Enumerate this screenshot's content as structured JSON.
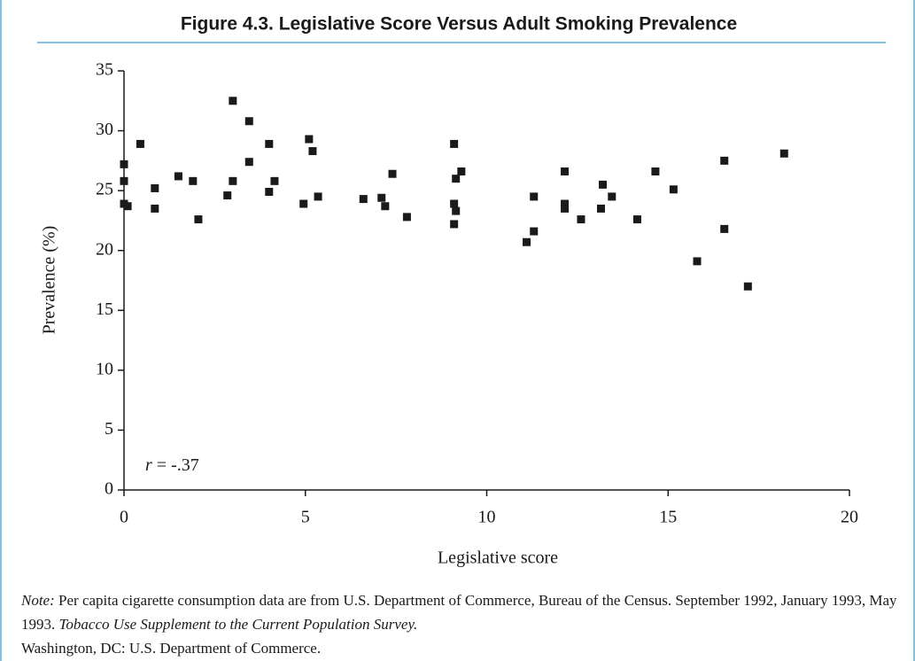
{
  "chart_data": {
    "type": "scatter",
    "title": "Figure 4.3. Legislative Score Versus Adult Smoking Prevalence",
    "xlabel": "Legislative score",
    "ylabel": "Prevalence (%)",
    "annotation": {
      "symbol": "r",
      "text": "= -.37"
    },
    "color": "#1a1a1a",
    "x": [
      0,
      0,
      0,
      0.1,
      0.45,
      0.85,
      0.85,
      1.5,
      1.9,
      2.05,
      2.85,
      3.0,
      3.0,
      3.45,
      3.45,
      4.0,
      4.0,
      4.15,
      4.95,
      5.1,
      5.2,
      5.35,
      6.6,
      7.1,
      7.2,
      7.4,
      7.8,
      9.1,
      9.1,
      9.1,
      9.15,
      9.15,
      9.3,
      11.1,
      11.3,
      11.3,
      12.15,
      12.15,
      12.15,
      12.6,
      13.15,
      13.2,
      13.45,
      14.15,
      14.65,
      15.15,
      15.8,
      16.55,
      16.55,
      17.2,
      18.2
    ],
    "values": [
      27.2,
      25.8,
      23.9,
      23.7,
      28.9,
      25.2,
      23.5,
      26.2,
      25.8,
      22.6,
      24.6,
      32.5,
      25.8,
      30.8,
      27.4,
      28.9,
      24.9,
      25.8,
      23.9,
      29.3,
      28.3,
      24.5,
      24.3,
      24.4,
      23.7,
      26.4,
      22.8,
      28.9,
      23.9,
      22.2,
      26.0,
      23.3,
      26.6,
      20.7,
      24.5,
      21.6,
      26.6,
      23.9,
      23.5,
      22.6,
      23.5,
      25.5,
      24.5,
      22.6,
      26.6,
      25.1,
      19.1,
      21.8,
      27.5,
      17.0,
      28.1
    ],
    "xlim": [
      0,
      20
    ],
    "xticks": [
      0,
      5,
      10,
      15,
      20
    ],
    "ylim": [
      0,
      35
    ],
    "yticks": [
      0,
      5,
      10,
      15,
      20,
      25,
      30,
      35
    ]
  },
  "note": {
    "label": "Note:",
    "text1": "Per capita cigarette consumption data are from U.S. Department of Commerce, Bureau of the Census. September 1992, January 1993, May 1993.",
    "source_title": "Tobacco Use Supplement to the Current Population Survey.",
    "text2": "Washington, DC: U.S. Department of Commerce."
  }
}
